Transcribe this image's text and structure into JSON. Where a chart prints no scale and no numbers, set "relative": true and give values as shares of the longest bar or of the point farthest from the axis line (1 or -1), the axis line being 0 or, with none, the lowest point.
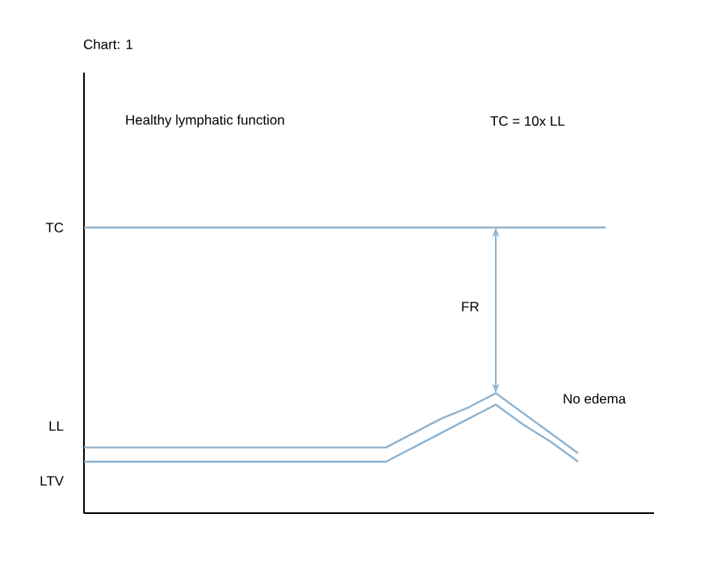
{
  "chart_data": {
    "type": "line",
    "title": "Chart: 1",
    "relative": true,
    "categories": [
      null,
      null,
      null,
      null,
      null,
      null,
      null,
      null,
      null,
      null,
      null,
      null,
      null,
      null,
      null,
      null,
      null,
      null,
      null,
      null
    ],
    "series": [
      {
        "color": "#8fb3cf",
        "values": [
          1,
          1,
          1,
          1,
          1,
          1,
          1,
          1,
          1,
          1,
          1,
          1,
          1,
          1,
          1,
          1,
          1,
          1,
          1,
          1
        ]
      },
      {
        "color": "#8fb3cf",
        "values": [
          0.23,
          0.23,
          0.23,
          0.23,
          0.23,
          0.23,
          0.23,
          0.23,
          0.23,
          0.23,
          0.23,
          0.23,
          0.28,
          0.33,
          0.37,
          0.42,
          0.35,
          0.28,
          0.21,
          null
        ]
      },
      {
        "color": "#8fb3cf",
        "values": [
          0.18,
          0.18,
          0.18,
          0.18,
          0.18,
          0.18,
          0.18,
          0.18,
          0.18,
          0.18,
          0.18,
          0.18,
          0.23,
          0.28,
          0.33,
          0.38,
          0.31,
          0.25,
          0.18,
          null
        ]
      }
    ],
    "annotations": [
      "Healthy lymphatic function",
      "TC = 10x LL",
      "FR",
      "No edema",
      "TC",
      "LL",
      "LTV"
    ]
  }
}
